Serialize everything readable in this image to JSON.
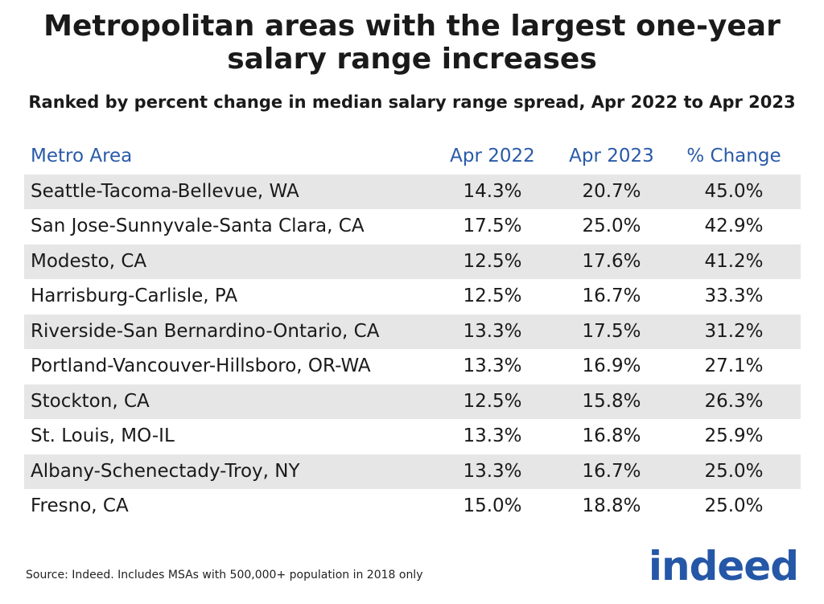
{
  "header": {
    "title": "Metropolitan areas with the largest one-year salary range increases",
    "subtitle": "Ranked by percent change in median salary range spread, Apr 2022 to Apr 2023"
  },
  "table": {
    "columns": [
      "Metro Area",
      "Apr 2022",
      "Apr 2023",
      "% Change"
    ],
    "rows": [
      [
        "Seattle-Tacoma-Bellevue, WA",
        "14.3%",
        "20.7%",
        "45.0%"
      ],
      [
        "San Jose-Sunnyvale-Santa Clara, CA",
        "17.5%",
        "25.0%",
        "42.9%"
      ],
      [
        "Modesto, CA",
        "12.5%",
        "17.6%",
        "41.2%"
      ],
      [
        "Harrisburg-Carlisle, PA",
        "12.5%",
        "16.7%",
        "33.3%"
      ],
      [
        "Riverside-San Bernardino-Ontario, CA",
        "13.3%",
        "17.5%",
        "31.2%"
      ],
      [
        "Portland-Vancouver-Hillsboro, OR-WA",
        "13.3%",
        "16.9%",
        "27.1%"
      ],
      [
        "Stockton, CA",
        "12.5%",
        "15.8%",
        "26.3%"
      ],
      [
        "St. Louis, MO-IL",
        "13.3%",
        "16.8%",
        "25.9%"
      ],
      [
        "Albany-Schenectady-Troy, NY",
        "13.3%",
        "16.7%",
        "25.0%"
      ],
      [
        "Fresno, CA",
        "15.0%",
        "18.8%",
        "25.0%"
      ]
    ]
  },
  "footer": {
    "source": "Source: Indeed. Includes MSAs with 500,000+ population in 2018 only",
    "logo": "indeed"
  }
}
